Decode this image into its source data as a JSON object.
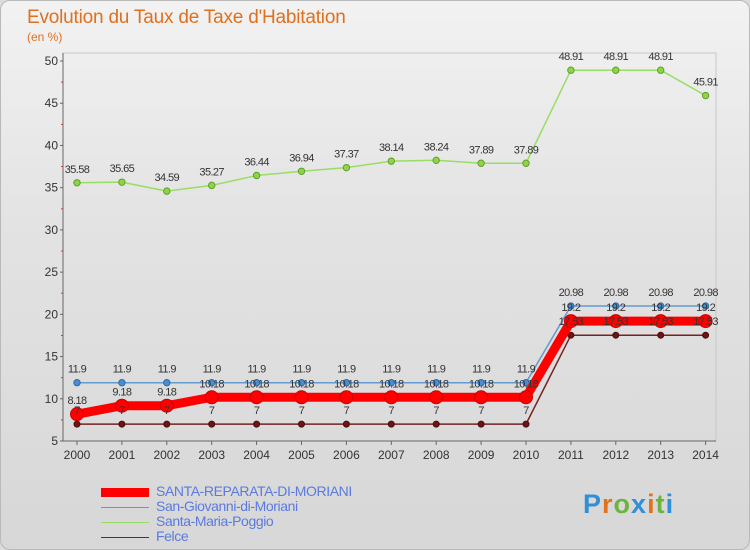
{
  "header": {
    "title": "Evolution du Taux de Taxe d'Habitation",
    "unit": "(en %)"
  },
  "logo": {
    "text": "Proxiti"
  },
  "colors": {
    "title": "#e0701e",
    "legend_text": "#5a7ae0",
    "santa_reparata": "#ff0000",
    "san_giovanni": "#6699cc",
    "santa_maria": "#99dd66",
    "felce": "#772222"
  },
  "chart_data": {
    "type": "line",
    "title": "Evolution du Taux de Taxe d'Habitation",
    "ylabel": "(en %)",
    "xlabel": "",
    "ylim": [
      5,
      50
    ],
    "yticks": [
      5,
      10,
      15,
      20,
      25,
      30,
      35,
      40,
      45,
      50
    ],
    "grid": false,
    "legend_position": "bottom-left",
    "x": [
      "2000",
      "2001",
      "2002",
      "2003",
      "2004",
      "2005",
      "2006",
      "2007",
      "2008",
      "2009",
      "2010",
      "2011",
      "2012",
      "2013",
      "2014"
    ],
    "series": [
      {
        "name": "Santa-Maria-Poggio",
        "color": "#99dd66",
        "values": [
          35.58,
          35.65,
          34.59,
          35.27,
          36.44,
          36.94,
          37.37,
          38.14,
          38.24,
          37.89,
          37.89,
          48.91,
          48.91,
          48.91,
          45.91
        ],
        "labels": [
          "35.58",
          "35.65",
          "34.59",
          "35.27",
          "36.44",
          "36.94",
          "37.37",
          "38.14",
          "38.24",
          "37.89",
          "37.89",
          "48.91",
          "48.91",
          "48.91",
          "45.91"
        ]
      },
      {
        "name": "San-Giovanni-di-Moriani",
        "color": "#6699cc",
        "values": [
          11.9,
          11.9,
          11.9,
          11.9,
          11.9,
          11.9,
          11.9,
          11.9,
          11.9,
          11.9,
          11.9,
          20.98,
          20.98,
          20.98,
          20.98
        ],
        "labels": [
          "11.9",
          "11.9",
          "11.9",
          "11.9",
          "11.9",
          "11.9",
          "11.9",
          "11.9",
          "11.9",
          "11.9",
          "11.9",
          "20.98",
          "20.98",
          "20.98",
          "20.98"
        ]
      },
      {
        "name": "SANTA-REPARATA-DI-MORIANI",
        "color": "#ff0000",
        "values": [
          8.18,
          9.18,
          9.18,
          10.18,
          10.18,
          10.18,
          10.18,
          10.18,
          10.18,
          10.18,
          10.18,
          19.2,
          19.2,
          19.2,
          19.2
        ],
        "labels": [
          "8.18",
          "9.18",
          "9.18",
          "10.18",
          "10.18",
          "10.18",
          "10.18",
          "10.18",
          "10.18",
          "10.18",
          "10.18",
          "19.2",
          "19.2",
          "19.2",
          "19.2"
        ]
      },
      {
        "name": "Felce",
        "color": "#772222",
        "values": [
          7,
          7,
          7,
          7,
          7,
          7,
          7,
          7,
          7,
          7,
          7,
          17.53,
          17.53,
          17.53,
          17.53
        ],
        "labels": [
          "7",
          "7",
          "7",
          "7",
          "7",
          "7",
          "7",
          "7",
          "7",
          "7",
          "7",
          "17.53",
          "17.53",
          "17.53",
          "17.53"
        ]
      }
    ]
  },
  "legend": {
    "items": [
      {
        "label": "SANTA-REPARATA-DI-MORIANI",
        "color": "#ff0000"
      },
      {
        "label": "San-Giovanni-di-Moriani",
        "color": "#6699cc"
      },
      {
        "label": "Santa-Maria-Poggio",
        "color": "#99dd66"
      },
      {
        "label": "Felce",
        "color": "#772222"
      }
    ]
  }
}
